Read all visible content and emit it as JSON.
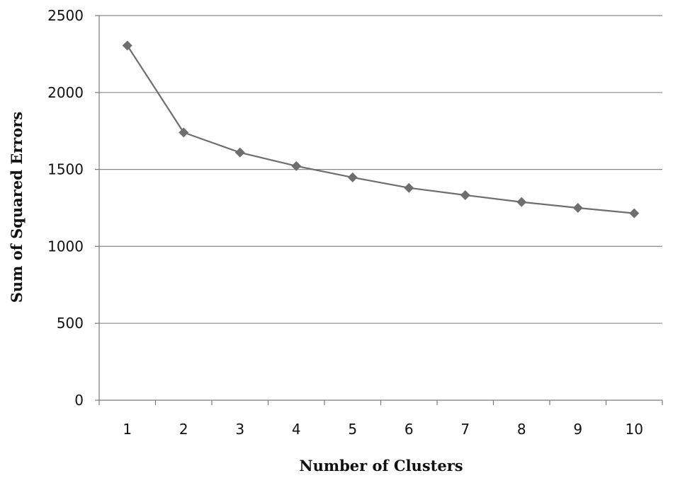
{
  "chart_data": {
    "type": "line",
    "title": "",
    "xlabel": "Number of Clusters",
    "ylabel": "Sum of Squared Errors",
    "categories": [
      "1",
      "2",
      "3",
      "4",
      "5",
      "6",
      "7",
      "8",
      "9",
      "10"
    ],
    "series": [
      {
        "values": [
          2305,
          1740,
          1610,
          1522,
          1448,
          1380,
          1333,
          1288,
          1250,
          1215
        ]
      }
    ],
    "ylim": [
      0,
      2500
    ],
    "yticks": [
      "0",
      "500",
      "1000",
      "1500",
      "2000",
      "2500"
    ],
    "grid": true,
    "legend": "none",
    "colors": {
      "series": "#6e6e6e",
      "grid": "#8a8a8a",
      "axis": "#7a7a7a"
    },
    "marker": "diamond"
  }
}
